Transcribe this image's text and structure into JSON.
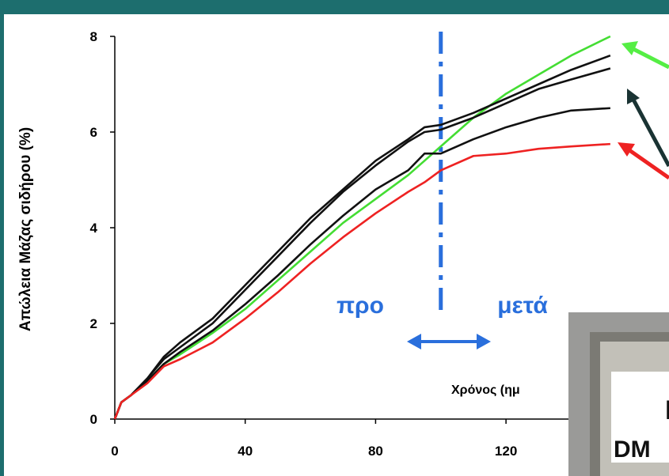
{
  "chart_data": {
    "type": "line",
    "y_label": "Απώλεια Μάζας σιδήρου (%)",
    "x_label": "Χρόνος (ημ",
    "annotations": [
      "προ",
      "μετά"
    ],
    "divider_x": 100,
    "photo_text": "DM",
    "x": [
      0,
      2,
      5,
      10,
      15,
      20,
      30,
      40,
      50,
      60,
      70,
      80,
      90,
      95,
      100,
      110,
      120,
      130,
      140,
      152
    ],
    "series": [
      {
        "color": "#44dd33",
        "values": [
          0,
          0.35,
          0.5,
          0.8,
          1.15,
          1.35,
          1.8,
          2.3,
          2.9,
          3.5,
          4.1,
          4.6,
          5.1,
          5.4,
          5.7,
          6.3,
          6.8,
          7.2,
          7.6,
          8.0
        ]
      },
      {
        "color": "#111111",
        "values": [
          0,
          0.35,
          0.5,
          0.85,
          1.3,
          1.6,
          2.1,
          2.8,
          3.5,
          4.2,
          4.8,
          5.4,
          5.85,
          6.1,
          6.15,
          6.4,
          6.7,
          7.0,
          7.3,
          7.6
        ]
      },
      {
        "color": "#111111",
        "values": [
          0,
          0.35,
          0.5,
          0.85,
          1.25,
          1.5,
          2.0,
          2.7,
          3.4,
          4.1,
          4.75,
          5.3,
          5.8,
          6.0,
          6.05,
          6.3,
          6.6,
          6.9,
          7.1,
          7.33
        ]
      },
      {
        "color": "#111111",
        "values": [
          0,
          0.35,
          0.5,
          0.8,
          1.15,
          1.4,
          1.85,
          2.4,
          3.0,
          3.65,
          4.25,
          4.8,
          5.2,
          5.55,
          5.55,
          5.85,
          6.1,
          6.3,
          6.45,
          6.5
        ]
      },
      {
        "color": "#ee2222",
        "values": [
          0,
          0.35,
          0.5,
          0.75,
          1.1,
          1.25,
          1.6,
          2.1,
          2.65,
          3.25,
          3.8,
          4.3,
          4.75,
          4.95,
          5.2,
          5.5,
          5.55,
          5.65,
          5.7,
          5.75
        ]
      }
    ],
    "xlim": [
      0,
      170
    ],
    "ylim": [
      0,
      8
    ],
    "xticks": [
      0,
      40,
      80,
      120
    ],
    "yticks": [
      0,
      2,
      4,
      6,
      8
    ]
  }
}
